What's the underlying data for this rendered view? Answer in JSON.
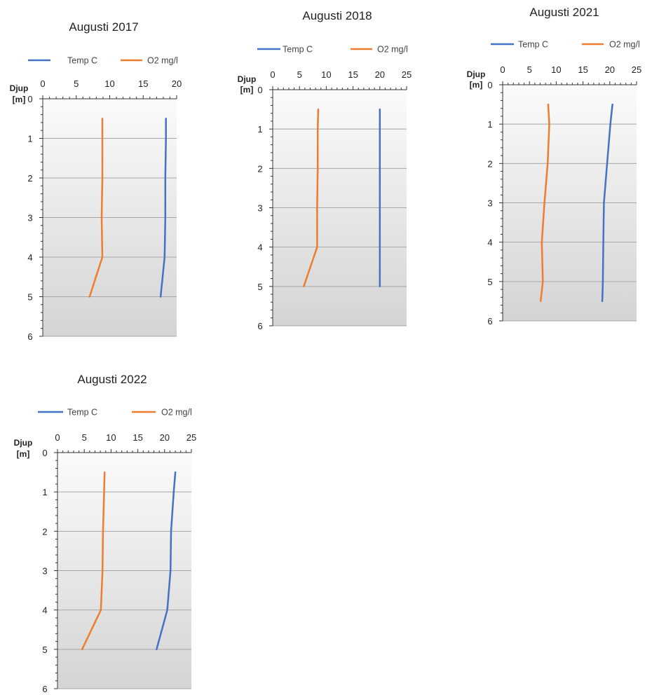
{
  "colors": {
    "temp": "#4472c4",
    "o2": "#ed7d31",
    "grid": "#a6a6a6",
    "axis": "#333333",
    "plot_top": "#fbfbfb",
    "plot_bottom": "#d4d4d4"
  },
  "chart_data": [
    {
      "type": "line",
      "title": "Augusti 2017",
      "ylabel": "Djup [m]",
      "ylabel_lines": [
        "Djup",
        "[m]"
      ],
      "x_ticks": [
        0,
        5,
        10,
        15,
        20
      ],
      "xlim": [
        0,
        20
      ],
      "y_ticks": [
        0,
        1,
        2,
        3,
        4,
        5,
        6
      ],
      "ylim": [
        0,
        6
      ],
      "y_inverted": true,
      "legend_position": "top",
      "series": [
        {
          "name": "Temp C",
          "color_key": "temp",
          "x": [
            18.4,
            18.4,
            18.3,
            18.3,
            18.2,
            17.6
          ],
          "y": [
            0.5,
            1,
            2,
            3,
            4,
            5
          ]
        },
        {
          "name": "O2 mg/l",
          "color_key": "o2",
          "x": [
            8.9,
            8.9,
            8.9,
            8.8,
            8.9,
            7.0
          ],
          "y": [
            0.5,
            1,
            2,
            3,
            4,
            5
          ]
        }
      ]
    },
    {
      "type": "line",
      "title": "Augusti 2018",
      "ylabel": "Djup [m]",
      "ylabel_lines": [
        "Djup",
        "[m]"
      ],
      "x_ticks": [
        0,
        5,
        10,
        15,
        20,
        25
      ],
      "xlim": [
        0,
        25
      ],
      "y_ticks": [
        0,
        1,
        2,
        3,
        4,
        5,
        6
      ],
      "ylim": [
        0,
        6
      ],
      "y_inverted": true,
      "legend_position": "top",
      "series": [
        {
          "name": "Temp C",
          "color_key": "temp",
          "x": [
            20.0,
            20.0,
            20.0,
            20.0,
            20.0,
            20.0
          ],
          "y": [
            0.5,
            1,
            2,
            3,
            4,
            5
          ]
        },
        {
          "name": "O2 mg/l",
          "color_key": "o2",
          "x": [
            8.5,
            8.4,
            8.4,
            8.3,
            8.3,
            5.8
          ],
          "y": [
            0.5,
            1,
            2,
            3,
            4,
            5
          ]
        }
      ]
    },
    {
      "type": "line",
      "title": "Augusti 2021",
      "ylabel": "Djup [m]",
      "ylabel_lines": [
        "Djup",
        "[m]"
      ],
      "x_ticks": [
        0,
        5,
        10,
        15,
        20,
        25
      ],
      "xlim": [
        0,
        25
      ],
      "y_ticks": [
        0,
        1,
        2,
        3,
        4,
        5,
        6
      ],
      "ylim": [
        0,
        6
      ],
      "y_inverted": true,
      "legend_position": "top",
      "series": [
        {
          "name": "Temp C",
          "color_key": "temp",
          "x": [
            20.5,
            20.1,
            19.5,
            18.9,
            18.8,
            18.7,
            18.6
          ],
          "y": [
            0.5,
            1,
            2,
            3,
            4,
            5,
            5.5
          ]
        },
        {
          "name": "O2 mg/l",
          "color_key": "o2",
          "x": [
            8.5,
            8.7,
            8.4,
            7.8,
            7.3,
            7.5,
            7.1
          ],
          "y": [
            0.5,
            1,
            2,
            3,
            4,
            5,
            5.5
          ]
        }
      ]
    },
    {
      "type": "line",
      "title": "Augusti 2022",
      "ylabel": "Djup [m]",
      "ylabel_lines": [
        "Djup",
        "[m]"
      ],
      "x_ticks": [
        0,
        5,
        10,
        15,
        20,
        25
      ],
      "xlim": [
        0,
        25
      ],
      "y_ticks": [
        0,
        1,
        2,
        3,
        4,
        5,
        6
      ],
      "ylim": [
        0,
        6
      ],
      "y_inverted": true,
      "legend_position": "top",
      "series": [
        {
          "name": "Temp C",
          "color_key": "temp",
          "x": [
            22.0,
            21.7,
            21.2,
            21.1,
            20.5,
            18.5
          ],
          "y": [
            0.5,
            1,
            2,
            3,
            4,
            5
          ]
        },
        {
          "name": "O2 mg/l",
          "color_key": "o2",
          "x": [
            8.8,
            8.7,
            8.5,
            8.4,
            8.1,
            4.6
          ],
          "y": [
            0.5,
            1,
            2,
            3,
            4,
            5
          ]
        }
      ]
    }
  ]
}
